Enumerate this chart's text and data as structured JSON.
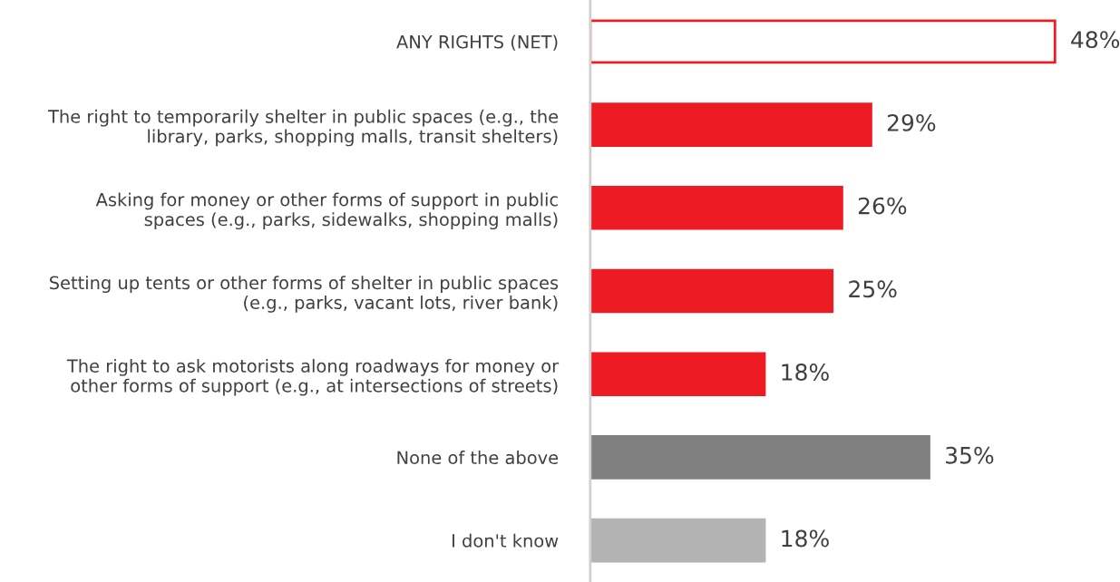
{
  "chart_data": {
    "type": "bar",
    "orientation": "horizontal",
    "categories": [
      "ANY RIGHTS (NET)",
      "The right to temporarily shelter in public spaces (e.g., the\nlibrary, parks, shopping malls, transit shelters)",
      "Asking for money or other forms of support in public\nspaces (e.g., parks, sidewalks, shopping malls)",
      "Setting up tents or other forms of shelter in public spaces\n(e.g., parks, vacant lots, river bank)",
      "The right to ask motorists along roadways for money or\nother forms of support (e.g., at intersections of streets)",
      "None of the above",
      "I don't know"
    ],
    "values": [
      48,
      29,
      26,
      25,
      18,
      35,
      18
    ],
    "colors": [
      "#ffffff",
      "#ed1c24",
      "#ed1c24",
      "#ed1c24",
      "#ed1c24",
      "#808080",
      "#b3b3b3"
    ],
    "value_labels": [
      "48%",
      "29%",
      "26%",
      "25%",
      "18%",
      "35%",
      "18%"
    ],
    "tick_labels": "y",
    "grid": false
  }
}
